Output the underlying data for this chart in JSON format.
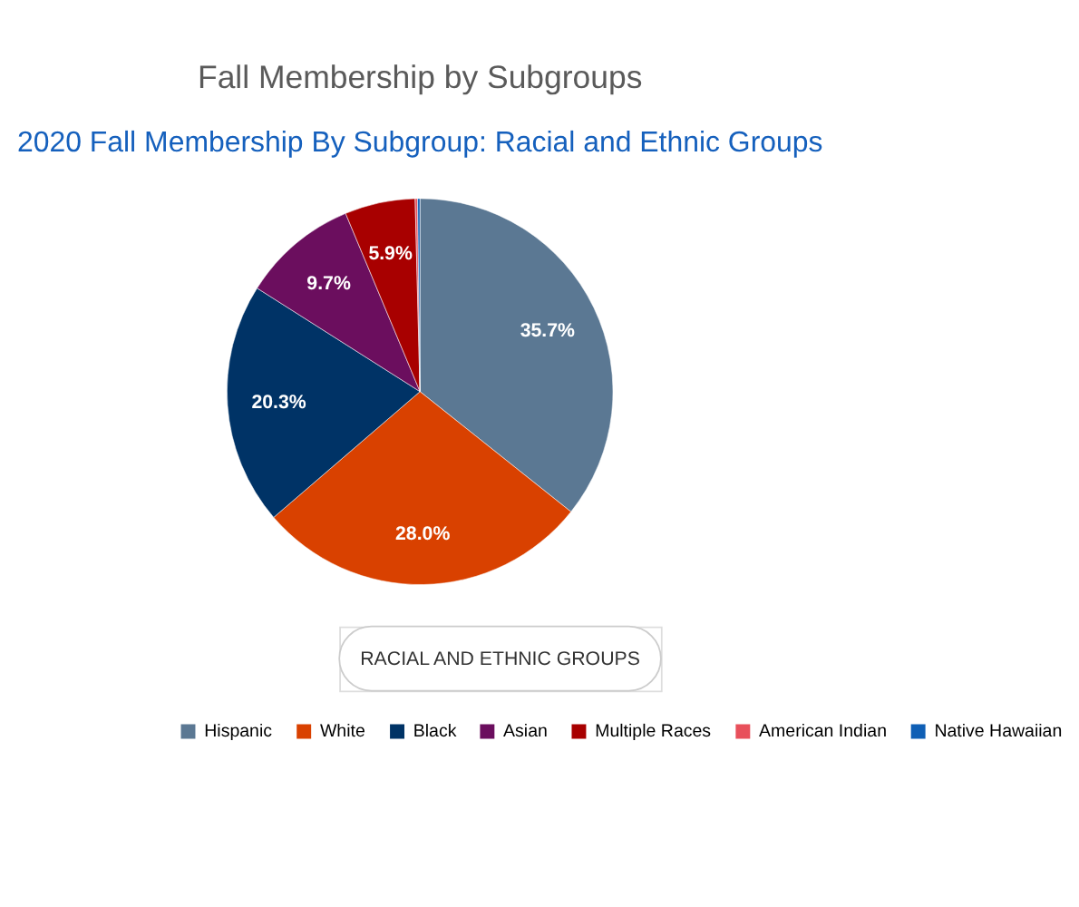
{
  "chart_data": {
    "type": "pie",
    "title": "Fall Membership by Subgroups",
    "subtitle": "2020 Fall Membership By Subgroup: Racial and Ethnic Groups",
    "categories": [
      "Hispanic",
      "White",
      "Black",
      "Asian",
      "Multiple Races",
      "American Indian",
      "Native Hawaiian"
    ],
    "values": [
      35.7,
      28.0,
      20.3,
      9.7,
      5.9,
      0.2,
      0.2
    ],
    "value_labels": [
      "35.7%",
      "28.0%",
      "20.3%",
      "9.7%",
      "5.9%",
      null,
      null
    ],
    "colors": [
      "#5b7893",
      "#d94100",
      "#003366",
      "#6b0e5e",
      "#a80000",
      "#e8505b",
      "#0f5fb5"
    ],
    "legend": "bottom",
    "annotations": [
      "RACIAL AND ETHNIC GROUPS"
    ]
  }
}
